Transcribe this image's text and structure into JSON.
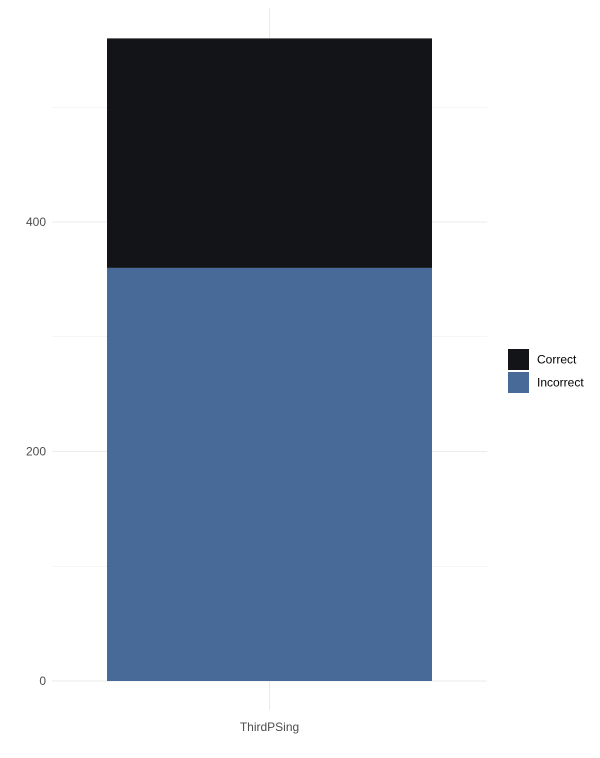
{
  "chart_data": {
    "type": "bar",
    "stacked": true,
    "categories": [
      "ThirdPSing"
    ],
    "series": [
      {
        "name": "Incorrect",
        "values": [
          360
        ],
        "color": "#476a98"
      },
      {
        "name": "Correct",
        "values": [
          200
        ],
        "color": "#121418"
      }
    ],
    "title": "",
    "xlabel": "",
    "ylabel": "",
    "ylim": [
      0,
      560
    ],
    "y_ticks": [
      0,
      200,
      400
    ],
    "grid": true,
    "legend": {
      "position": "right",
      "order": [
        "Correct",
        "Incorrect"
      ]
    },
    "colors": {
      "background": "#ffffff",
      "grid": "#ebebeb",
      "tick_text": "#4d4d4d"
    }
  }
}
